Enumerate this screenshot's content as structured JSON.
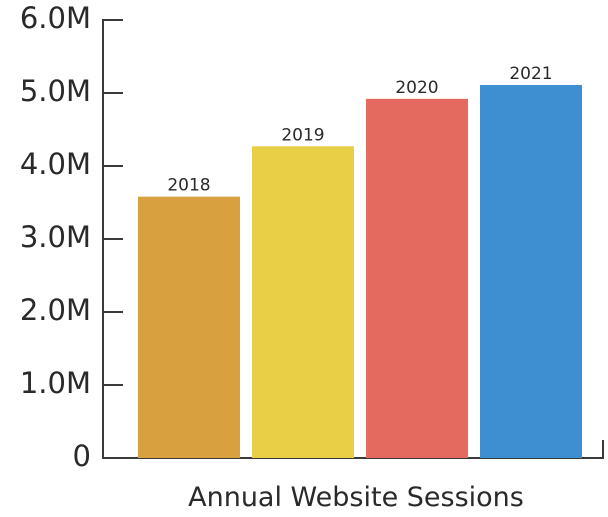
{
  "chart_data": {
    "type": "bar",
    "x_label": "Annual Website Sessions",
    "categories": [
      "2018",
      "2019",
      "2020",
      "2021"
    ],
    "values": [
      3580000,
      4270000,
      4920000,
      5110000
    ],
    "colors": [
      "#d8a03f",
      "#e9cf45",
      "#e4695f",
      "#3e8fd2"
    ],
    "ylim": [
      0,
      6000000
    ],
    "yticks": [
      0,
      {
        "value": 1000000,
        "label": "1.0M"
      },
      {
        "value": 2000000,
        "label": "2.0M"
      },
      {
        "value": 3000000,
        "label": "3.0M"
      },
      {
        "value": 4000000,
        "label": "4.0M"
      },
      {
        "value": 5000000,
        "label": "5.0M"
      },
      {
        "value": 6000000,
        "label": "6.0M"
      }
    ]
  }
}
